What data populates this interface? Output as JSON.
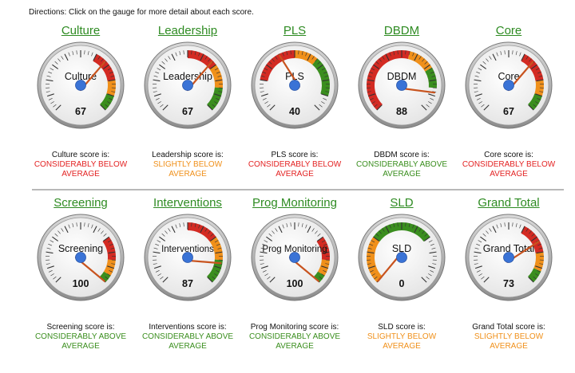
{
  "directions": "Directions: Click on the gauge for more detail about each score.",
  "status_colors": {
    "below_considerably": "#e32222",
    "below_slightly": "#f0901a",
    "above_considerably": "#3a8e1e"
  },
  "rows": [
    [
      {
        "title": "Culture",
        "label": "Culture",
        "value": 67,
        "caption": "Culture score is:",
        "status": "CONSIDERABLY BELOW AVERAGE",
        "status_color": "#e32222",
        "zones": "A"
      },
      {
        "title": "Leadership",
        "label": "Leadership",
        "value": 67,
        "caption": "Leadership score is:",
        "status": "SLIGHTLY BELOW AVERAGE",
        "status_color": "#f0901a",
        "zones": "B"
      },
      {
        "title": "PLS",
        "label": "PLS",
        "value": 40,
        "caption": "PLS score is:",
        "status": "CONSIDERABLY BELOW AVERAGE",
        "status_color": "#e32222",
        "zones": "C"
      },
      {
        "title": "DBDM",
        "label": "DBDM",
        "value": 88,
        "caption": "DBDM score is:",
        "status": "CONSIDERABLY ABOVE AVERAGE",
        "status_color": "#3a8e1e",
        "zones": "D"
      },
      {
        "title": "Core",
        "label": "Core",
        "value": 67,
        "caption": "Core score is:",
        "status": "CONSIDERABLY BELOW AVERAGE",
        "status_color": "#e32222",
        "zones": "A"
      }
    ],
    [
      {
        "title": "Screening",
        "label": "Screening",
        "value": 100,
        "caption": "Screening score is:",
        "status": "CONSIDERABLY ABOVE AVERAGE",
        "status_color": "#3a8e1e",
        "zones": "E"
      },
      {
        "title": "Interventions",
        "label": "Interventions",
        "value": 87,
        "caption": "Interventions score is:",
        "status": "CONSIDERABLY ABOVE AVERAGE",
        "status_color": "#3a8e1e",
        "zones": "B"
      },
      {
        "title": "Prog Monitoring",
        "label": "Prog Monitoring",
        "value": 100,
        "caption": "Prog Monitoring score is:",
        "status": "CONSIDERABLY ABOVE AVERAGE",
        "status_color": "#3a8e1e",
        "zones": "E"
      },
      {
        "title": "SLD",
        "label": "SLD",
        "value": 0,
        "caption": "SLD score is:",
        "status": "SLIGHTLY BELOW AVERAGE",
        "status_color": "#f0901a",
        "zones": "F"
      },
      {
        "title": "Grand Total",
        "label": "Grand Total",
        "value": 73,
        "caption": "Grand Total score is:",
        "status": "SLIGHTLY BELOW AVERAGE",
        "status_color": "#f0901a",
        "zones": "G"
      }
    ]
  ]
}
